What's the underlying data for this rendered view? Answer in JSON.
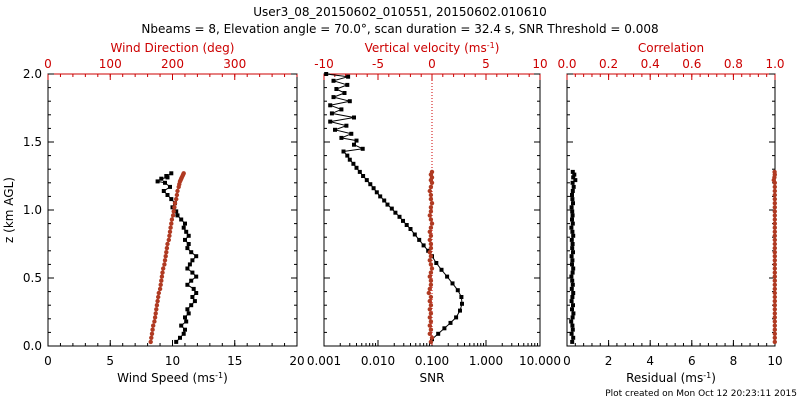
{
  "figure": {
    "title_line1": "User3_08_20150602_010551, 20150602.010610",
    "title_line2": "Nbeams = 8, Elevation angle = 70.0°, scan duration = 32.4 s, SNR Threshold = 0.008",
    "footer": "Plot created on Mon Oct 12 20:23:11 2015"
  },
  "colors": {
    "axis": "#000000",
    "secondary": "#cc0000",
    "secondary_points": "#b03a22",
    "primary_points": "#000000"
  },
  "chart_data": [
    {
      "type": "scatter",
      "xlabel_bottom": "Wind Speed (ms⁻¹)",
      "xlabel_top": "Wind Direction (deg)",
      "ylabel": "z (km AGL)",
      "xlim_bottom": [
        0,
        20
      ],
      "xticks_bottom": [
        "0",
        "5",
        "10",
        "15",
        "20"
      ],
      "xlim_top": [
        0,
        400
      ],
      "xticks_top": [
        "0",
        "100",
        "200",
        "300"
      ],
      "ylim": [
        0,
        2.0
      ],
      "yticks": [
        "0.0",
        "0.5",
        "1.0",
        "1.5",
        "2.0"
      ],
      "series": [
        {
          "axis": "bottom",
          "style": "line-markers",
          "x": [
            10.3,
            10.6,
            10.9,
            11.0,
            10.7,
            11.1,
            11.0,
            11.3,
            11.2,
            11.5,
            11.8,
            11.6,
            11.9,
            11.7,
            11.2,
            11.5,
            11.9,
            11.6,
            11.2,
            11.4,
            11.6,
            11.9,
            11.5,
            11.2,
            11.3,
            11.0,
            11.3,
            11.1,
            10.9,
            11.0,
            10.7,
            10.4,
            10.3,
            10.0,
            10.2,
            9.9,
            9.6,
            9.3,
            9.8,
            9.4,
            8.8,
            9.1,
            9.6,
            9.5,
            9.9
          ],
          "y": [
            0.03,
            0.06,
            0.09,
            0.12,
            0.15,
            0.18,
            0.21,
            0.24,
            0.27,
            0.3,
            0.33,
            0.36,
            0.39,
            0.42,
            0.45,
            0.48,
            0.51,
            0.54,
            0.57,
            0.6,
            0.63,
            0.66,
            0.69,
            0.72,
            0.75,
            0.78,
            0.81,
            0.84,
            0.87,
            0.9,
            0.93,
            0.96,
            0.99,
            1.02,
            1.05,
            1.08,
            1.11,
            1.14,
            1.17,
            1.2,
            1.21,
            1.23,
            1.24,
            1.25,
            1.27
          ]
        },
        {
          "axis": "top",
          "style": "markers",
          "x": [
            165,
            166,
            167,
            168,
            169,
            171,
            172,
            173,
            174,
            175,
            176,
            177,
            178,
            180,
            181,
            182,
            183,
            184,
            185,
            187,
            188,
            189,
            190,
            191,
            192,
            194,
            195,
            196,
            197,
            198,
            199,
            201,
            202,
            203,
            204,
            206,
            207,
            208,
            210,
            211,
            212,
            213,
            214,
            215,
            216,
            217,
            218
          ],
          "y": [
            0.03,
            0.06,
            0.09,
            0.12,
            0.15,
            0.18,
            0.21,
            0.24,
            0.27,
            0.3,
            0.33,
            0.36,
            0.39,
            0.42,
            0.45,
            0.48,
            0.51,
            0.54,
            0.57,
            0.6,
            0.63,
            0.66,
            0.69,
            0.72,
            0.75,
            0.78,
            0.81,
            0.84,
            0.87,
            0.9,
            0.93,
            0.96,
            0.99,
            1.02,
            1.05,
            1.08,
            1.11,
            1.14,
            1.17,
            1.19,
            1.21,
            1.22,
            1.23,
            1.24,
            1.25,
            1.26,
            1.27
          ]
        }
      ]
    },
    {
      "type": "scatter",
      "xlabel_bottom": "SNR",
      "xlabel_top": "Vertical velocity (ms⁻¹)",
      "xscale_bottom": "log",
      "xlim_bottom": [
        0.001,
        10
      ],
      "xticks_bottom": [
        "0.001",
        "0.010",
        "0.100",
        "1.000",
        "10.000"
      ],
      "xlim_top": [
        -10,
        10
      ],
      "xticks_top": [
        "-10",
        "-5",
        "0",
        "5",
        "10"
      ],
      "ylim": [
        0,
        2.0
      ],
      "reference_line_top_x": 0,
      "series": [
        {
          "axis": "bottom",
          "style": "line-markers",
          "x": [
            0.1,
            0.13,
            0.17,
            0.22,
            0.28,
            0.33,
            0.36,
            0.35,
            0.3,
            0.24,
            0.19,
            0.15,
            0.12,
            0.1,
            0.085,
            0.07,
            0.058,
            0.048,
            0.04,
            0.034,
            0.029,
            0.025,
            0.021,
            0.018,
            0.015,
            0.013,
            0.011,
            0.0095,
            0.0083,
            0.0072,
            0.0062,
            0.0053,
            0.0046,
            0.004,
            0.0035,
            0.003,
            0.0027,
            0.0023,
            0.0052,
            0.0036,
            0.004,
            0.0021,
            0.0032,
            0.0016,
            0.0026,
            0.0013,
            0.0036,
            0.0014,
            0.0021,
            0.0013,
            0.003,
            0.0015,
            0.0024,
            0.0017,
            0.0027,
            0.0015,
            0.0028,
            0.0011
          ],
          "y": [
            0.05,
            0.09,
            0.13,
            0.17,
            0.21,
            0.26,
            0.31,
            0.36,
            0.41,
            0.46,
            0.51,
            0.56,
            0.61,
            0.66,
            0.7,
            0.74,
            0.78,
            0.82,
            0.86,
            0.89,
            0.92,
            0.95,
            0.98,
            1.01,
            1.04,
            1.07,
            1.1,
            1.13,
            1.16,
            1.19,
            1.22,
            1.25,
            1.28,
            1.31,
            1.34,
            1.37,
            1.4,
            1.43,
            1.45,
            1.48,
            1.51,
            1.53,
            1.56,
            1.59,
            1.62,
            1.65,
            1.68,
            1.71,
            1.74,
            1.77,
            1.8,
            1.83,
            1.86,
            1.89,
            1.92,
            1.95,
            1.98,
            2.0
          ]
        },
        {
          "axis": "top",
          "style": "markers",
          "x": [
            -0.1,
            0.0,
            -0.2,
            -0.1,
            -0.2,
            -0.1,
            -0.2,
            -0.1,
            -0.2,
            -0.1,
            -0.2,
            -0.1,
            -0.3,
            -0.2,
            -0.1,
            -0.1,
            -0.2,
            -0.1,
            0.0,
            -0.1,
            -0.2,
            -0.1,
            -0.2,
            -0.1,
            -0.1,
            -0.2,
            -0.1,
            -0.2,
            -0.1,
            0.0,
            -0.1,
            -0.2,
            -0.1,
            -0.1,
            0.0,
            -0.1,
            -0.1,
            -0.2,
            -0.1,
            0.0,
            -0.1,
            0.0,
            -0.1,
            0.0
          ],
          "y": [
            0.03,
            0.06,
            0.09,
            0.12,
            0.15,
            0.18,
            0.21,
            0.24,
            0.27,
            0.3,
            0.33,
            0.36,
            0.39,
            0.42,
            0.45,
            0.48,
            0.51,
            0.54,
            0.57,
            0.6,
            0.63,
            0.66,
            0.69,
            0.72,
            0.75,
            0.78,
            0.81,
            0.84,
            0.87,
            0.9,
            0.93,
            0.96,
            0.99,
            1.02,
            1.05,
            1.08,
            1.11,
            1.14,
            1.17,
            1.2,
            1.22,
            1.24,
            1.26,
            1.28
          ]
        }
      ]
    },
    {
      "type": "scatter",
      "xlabel_bottom": "Residual (ms⁻¹)",
      "xlabel_top": "Correlation",
      "xlim_bottom": [
        0,
        10
      ],
      "xticks_bottom": [
        "0",
        "2",
        "4",
        "6",
        "8",
        "10"
      ],
      "xlim_top": [
        0,
        1
      ],
      "xticks_top": [
        "0.0",
        "0.2",
        "0.4",
        "0.6",
        "0.8",
        "1.0"
      ],
      "ylim": [
        0,
        2.0
      ],
      "series": [
        {
          "axis": "bottom",
          "style": "line-markers",
          "x": [
            0.25,
            0.3,
            0.22,
            0.28,
            0.26,
            0.2,
            0.27,
            0.31,
            0.24,
            0.29,
            0.22,
            0.26,
            0.3,
            0.23,
            0.28,
            0.25,
            0.21,
            0.27,
            0.3,
            0.24,
            0.26,
            0.22,
            0.29,
            0.25,
            0.27,
            0.23,
            0.3,
            0.26,
            0.21,
            0.28,
            0.24,
            0.27,
            0.25,
            0.22,
            0.29,
            0.26,
            0.24,
            0.28,
            0.32,
            0.27,
            0.4,
            0.3,
            0.35,
            0.28
          ],
          "y": [
            0.03,
            0.06,
            0.09,
            0.12,
            0.15,
            0.18,
            0.21,
            0.24,
            0.27,
            0.3,
            0.33,
            0.36,
            0.39,
            0.42,
            0.45,
            0.48,
            0.51,
            0.54,
            0.57,
            0.6,
            0.63,
            0.66,
            0.69,
            0.72,
            0.75,
            0.78,
            0.81,
            0.84,
            0.87,
            0.9,
            0.93,
            0.96,
            0.99,
            1.02,
            1.05,
            1.08,
            1.11,
            1.14,
            1.17,
            1.2,
            1.22,
            1.24,
            1.26,
            1.28
          ]
        },
        {
          "axis": "top",
          "style": "markers",
          "x": [
            0.999,
            0.999,
            0.999,
            0.999,
            0.999,
            0.999,
            0.999,
            0.999,
            0.999,
            0.999,
            0.999,
            0.999,
            0.999,
            0.999,
            0.999,
            0.999,
            0.999,
            0.999,
            0.999,
            0.999,
            0.999,
            0.999,
            0.999,
            0.999,
            0.999,
            0.999,
            0.999,
            0.999,
            0.999,
            0.999,
            0.999,
            0.999,
            0.999,
            0.999,
            0.999,
            0.999,
            0.999,
            0.999,
            0.999,
            0.999,
            0.994,
            0.997,
            0.999,
            0.998
          ],
          "y": [
            0.03,
            0.06,
            0.09,
            0.12,
            0.15,
            0.18,
            0.21,
            0.24,
            0.27,
            0.3,
            0.33,
            0.36,
            0.39,
            0.42,
            0.45,
            0.48,
            0.51,
            0.54,
            0.57,
            0.6,
            0.63,
            0.66,
            0.69,
            0.72,
            0.75,
            0.78,
            0.81,
            0.84,
            0.87,
            0.9,
            0.93,
            0.96,
            0.99,
            1.02,
            1.05,
            1.08,
            1.11,
            1.14,
            1.17,
            1.2,
            1.22,
            1.24,
            1.26,
            1.28
          ]
        }
      ]
    }
  ]
}
